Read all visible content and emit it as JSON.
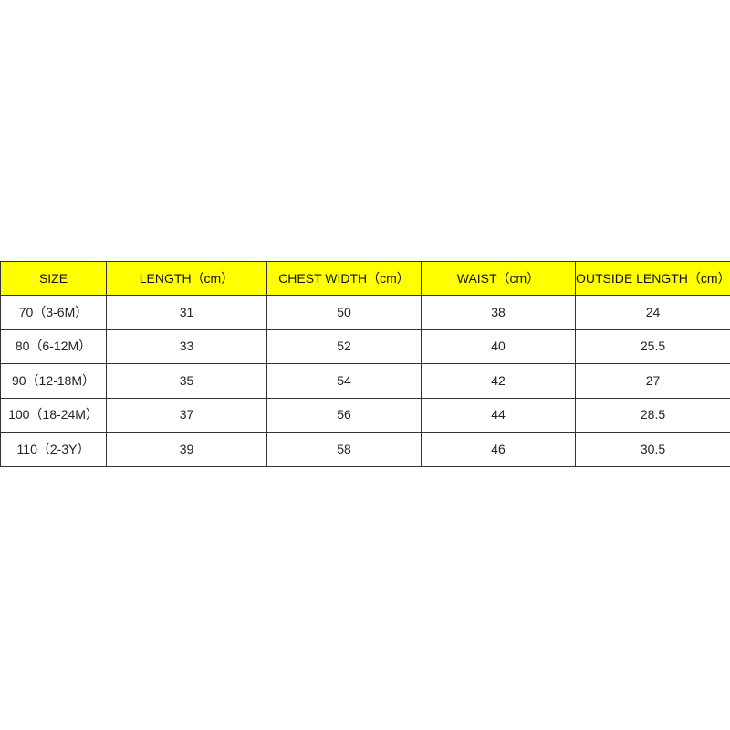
{
  "table": {
    "header_color": "#ffff00",
    "columns": [
      "SIZE",
      "LENGTH（cm）",
      "CHEST WIDTH（cm）",
      "WAIST（cm）",
      "OUTSIDE LENGTH（cm）"
    ],
    "rows": [
      [
        "70（3-6M）",
        "31",
        "50",
        "38",
        "24"
      ],
      [
        "80（6-12M）",
        "33",
        "52",
        "40",
        "25.5"
      ],
      [
        "90（12-18M）",
        "35",
        "54",
        "42",
        "27"
      ],
      [
        "100（18-24M）",
        "37",
        "56",
        "44",
        "28.5"
      ],
      [
        "110（2-3Y）",
        "39",
        "58",
        "46",
        "30.5"
      ]
    ]
  }
}
